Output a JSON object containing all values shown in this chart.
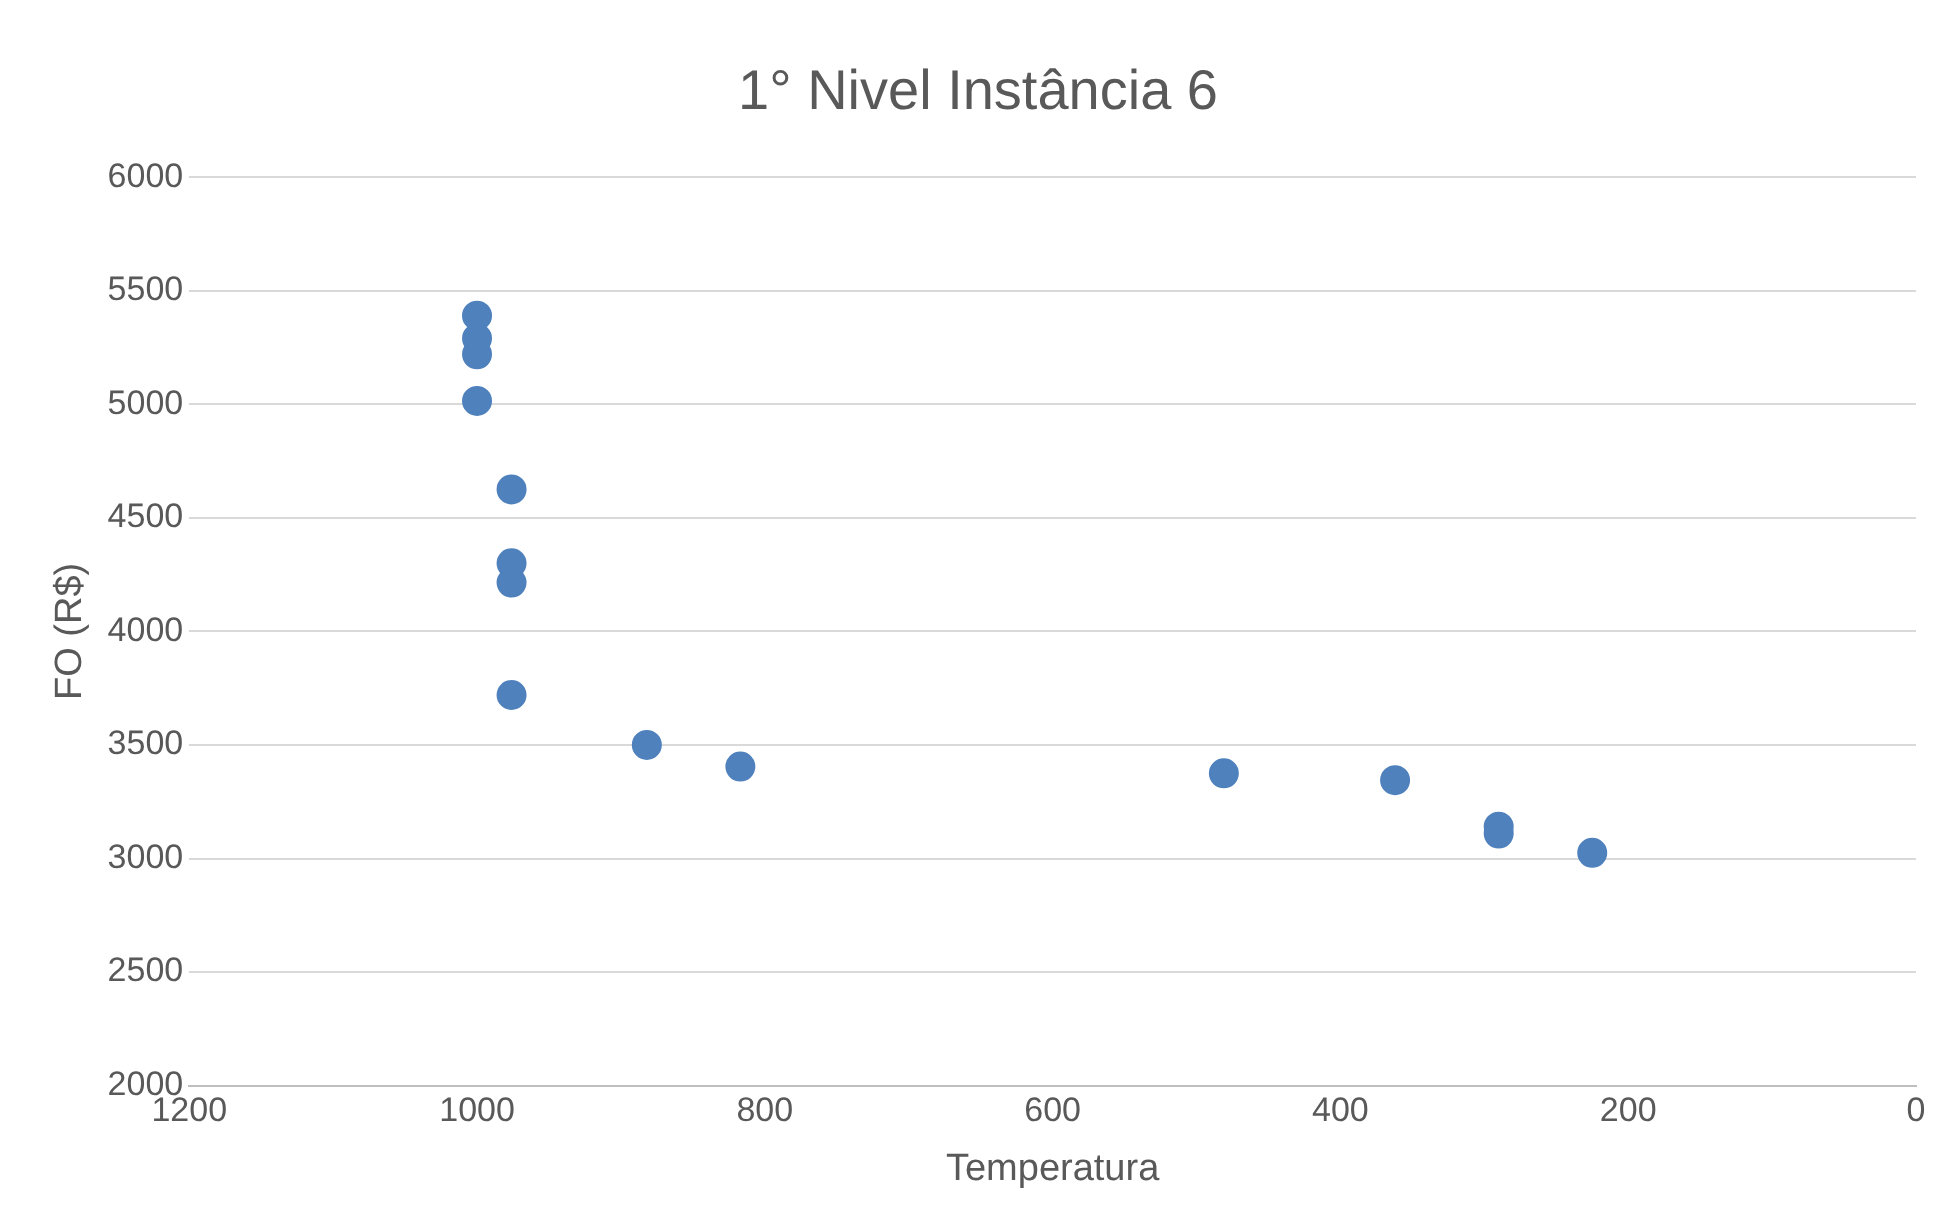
{
  "chart_data": {
    "type": "scatter",
    "title": "1° Nivel Instância 6",
    "xlabel": "Temperatura",
    "ylabel": "FO (R$)",
    "x": [
      1000,
      1000,
      1000,
      1000,
      976,
      976,
      976,
      976,
      882,
      817,
      481,
      362,
      290,
      290,
      225
    ],
    "series": [
      {
        "color": "#4f81bd",
        "values": [
          5390,
          5290,
          5220,
          5015,
          4625,
          4300,
          4215,
          3720,
          3500,
          3405,
          3375,
          3345,
          3140,
          3110,
          3025
        ]
      }
    ],
    "xlim": [
      1200,
      0
    ],
    "xticks": [
      1200,
      1000,
      800,
      600,
      400,
      200,
      0
    ],
    "ylim": [
      2000,
      6000
    ],
    "yticks": [
      2000,
      2500,
      3000,
      3500,
      4000,
      4500,
      5000,
      5500,
      6000
    ],
    "grid": "y",
    "legend": false,
    "marker": "circle"
  }
}
